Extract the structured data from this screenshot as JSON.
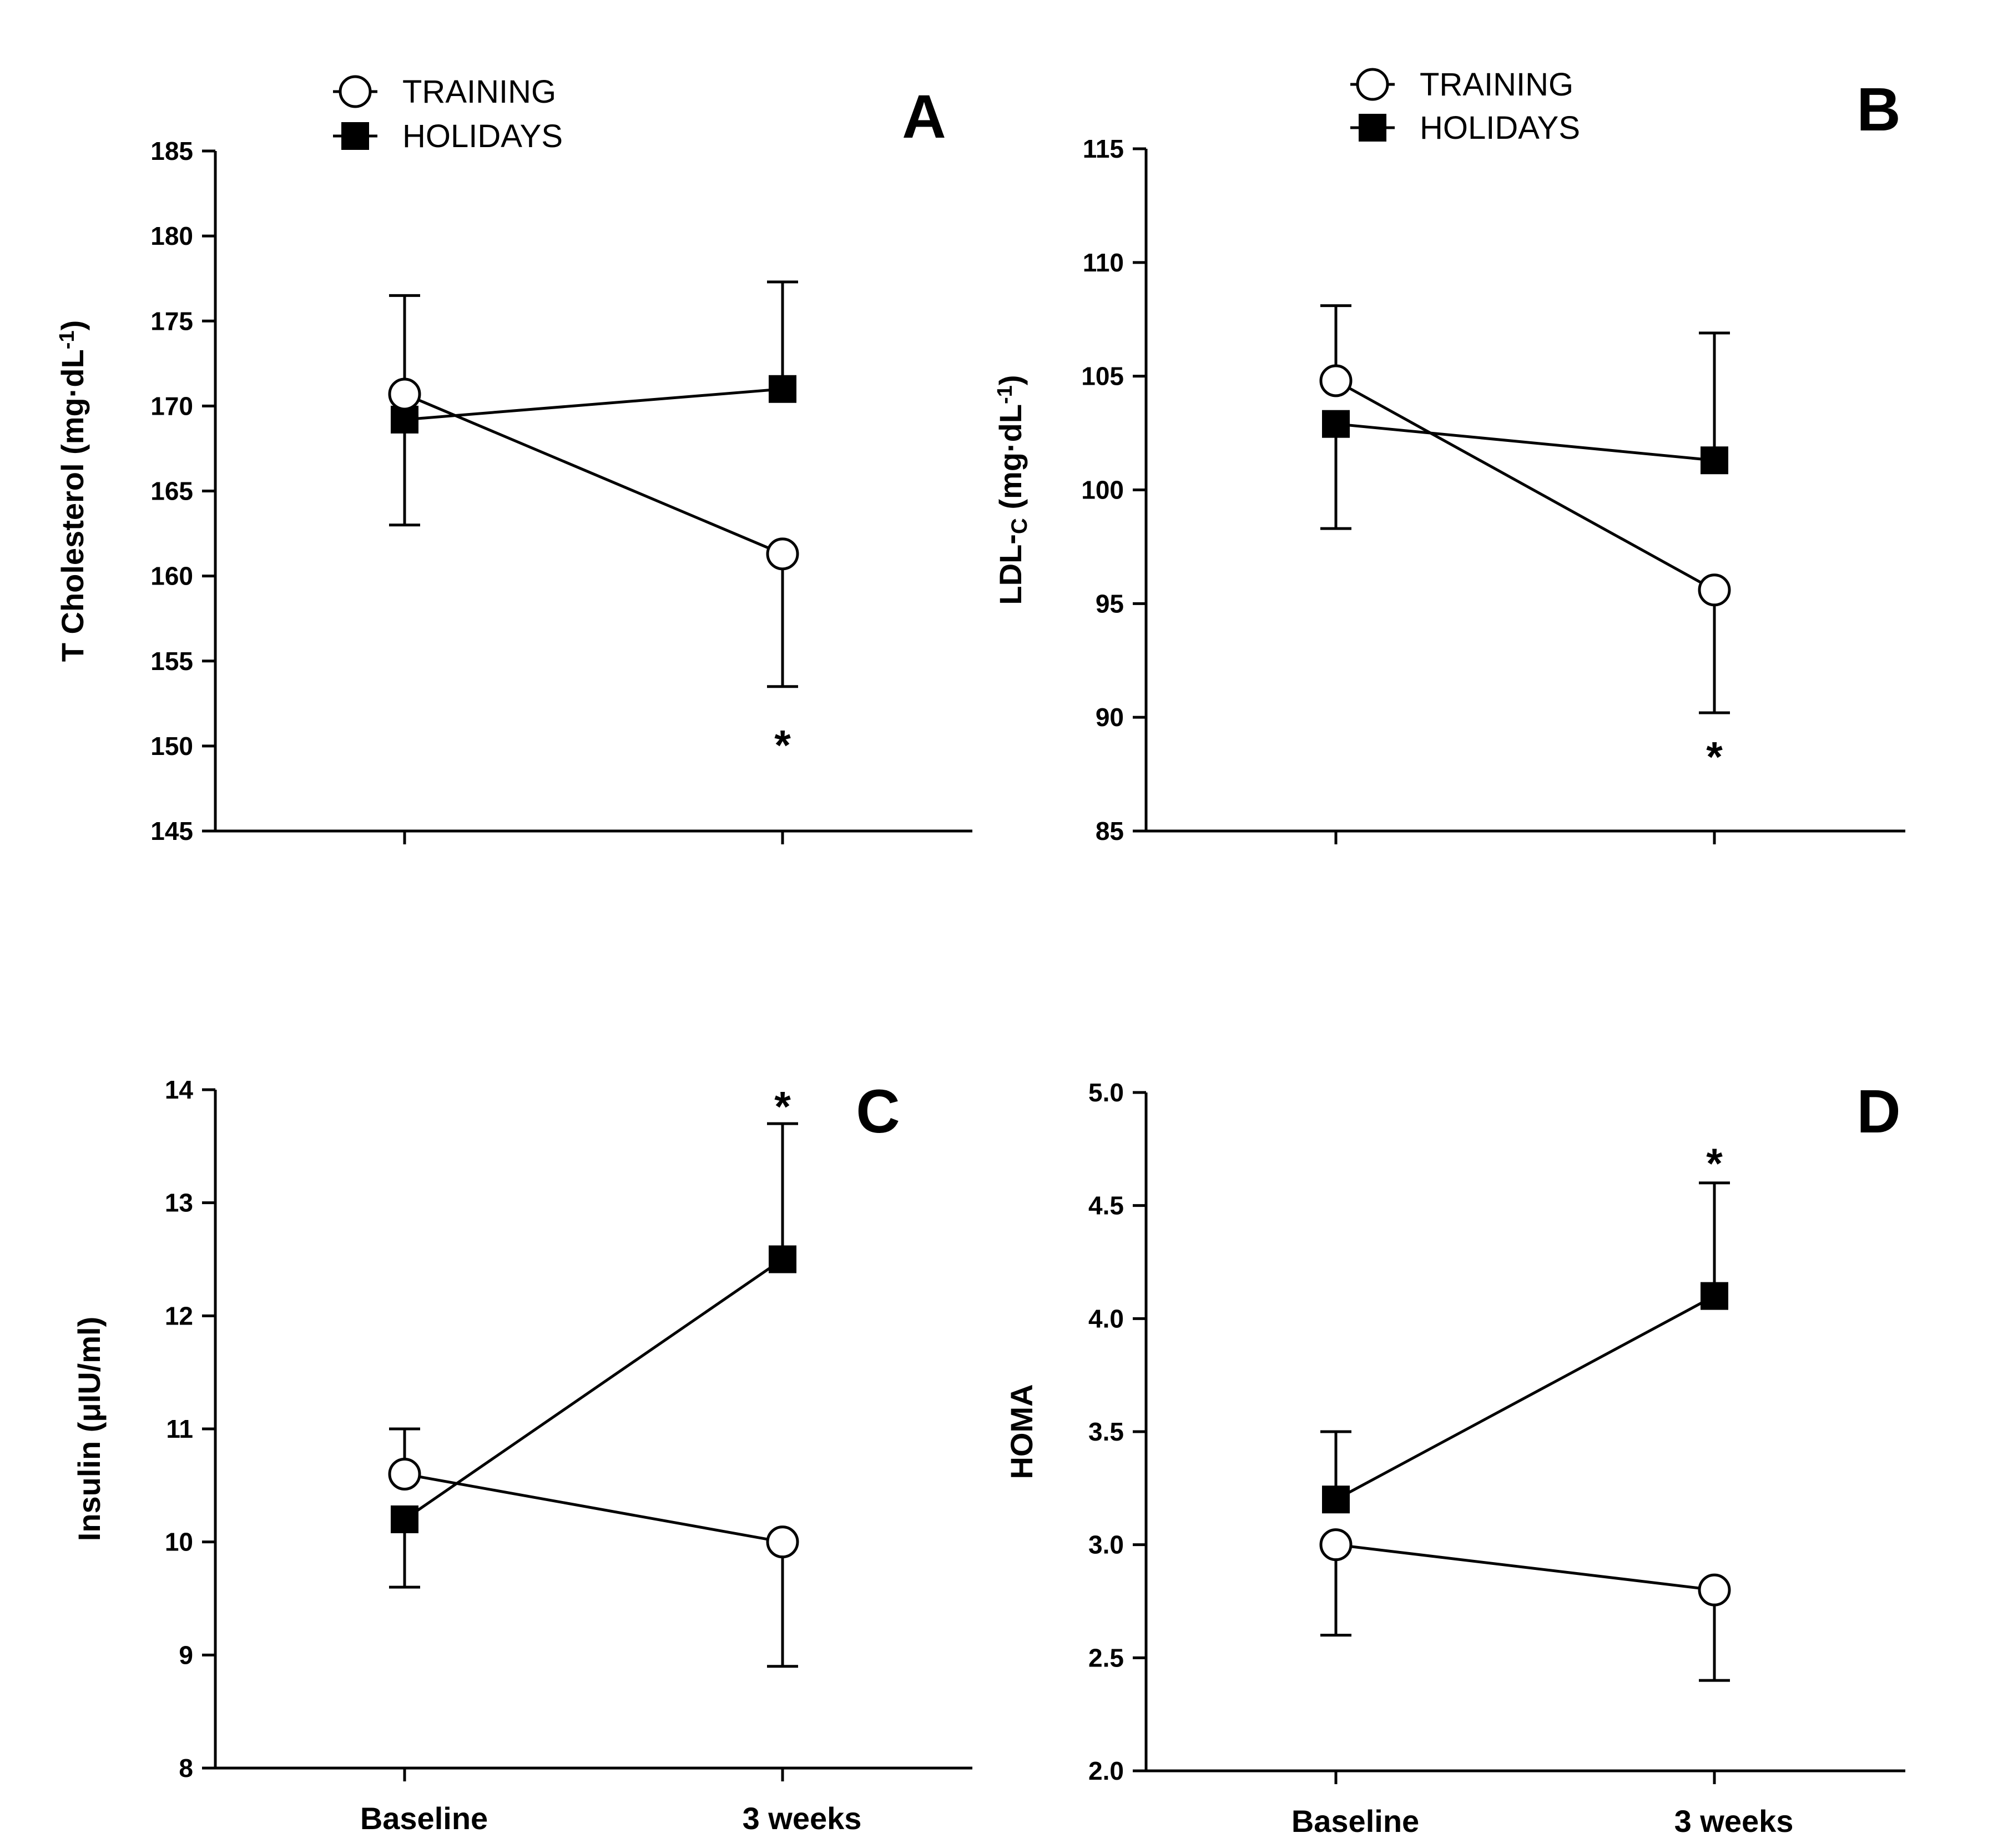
{
  "chart_data": [
    {
      "panel": "A",
      "type": "line",
      "categories": [
        "Baseline",
        "3 weeks"
      ],
      "ylabel": "T Cholesterol (mg·dL",
      "ylabel_sup": "-1",
      "ylabel_tail": ")",
      "ylim": [
        145,
        185
      ],
      "ytick_values": [
        145,
        150,
        155,
        160,
        165,
        170,
        175,
        180,
        185
      ],
      "ytick_labels": [
        "145",
        "150",
        "155",
        "160",
        "165",
        "170",
        "175",
        "180",
        "185"
      ],
      "legend": [
        "TRAINING",
        "HOLIDAYS"
      ],
      "series": [
        {
          "name": "TRAINING",
          "marker": "open-circle",
          "values": [
            170.7,
            161.3
          ],
          "err_lower": [
            null,
            153.5
          ],
          "err_upper": [
            null,
            null
          ]
        },
        {
          "name": "HOLIDAYS",
          "marker": "filled-square",
          "values": [
            169.2,
            171.0
          ],
          "err_lower": [
            163.0,
            null
          ],
          "err_upper": [
            176.5,
            177.3
          ]
        }
      ],
      "annotations": [
        {
          "text": "*",
          "category": "3 weeks",
          "y": 150.5
        }
      ]
    },
    {
      "panel": "B",
      "type": "line",
      "categories": [
        "Baseline",
        "3 weeks"
      ],
      "ylabel": "LDL-",
      "ylabel_sub": "C",
      "ylabel_mid": " (mg·dL",
      "ylabel_sup": "-1",
      "ylabel_tail": ")",
      "ylim": [
        85,
        115
      ],
      "ytick_values": [
        85,
        90,
        95,
        100,
        105,
        110,
        115
      ],
      "ytick_labels": [
        "85",
        "90",
        "95",
        "100",
        "105",
        "110",
        "115"
      ],
      "legend": [
        "TRAINING",
        "HOLIDAYS"
      ],
      "series": [
        {
          "name": "TRAINING",
          "marker": "open-circle",
          "values": [
            104.8,
            95.6
          ],
          "err_lower": [
            null,
            90.2
          ],
          "err_upper": [
            108.1,
            null
          ]
        },
        {
          "name": "HOLIDAYS",
          "marker": "filled-square",
          "values": [
            102.9,
            101.3
          ],
          "err_lower": [
            98.3,
            null
          ],
          "err_upper": [
            null,
            106.9
          ]
        }
      ],
      "annotations": [
        {
          "text": "*",
          "category": "3 weeks",
          "y": 88.6
        }
      ]
    },
    {
      "panel": "C",
      "type": "line",
      "categories": [
        "Baseline",
        "3 weeks"
      ],
      "ylabel": "Insulin (μIU/ml)",
      "ylim": [
        8,
        14
      ],
      "ytick_values": [
        8,
        9,
        10,
        11,
        12,
        13,
        14
      ],
      "ytick_labels": [
        "8",
        "9",
        "10",
        "11",
        "12",
        "13",
        "14"
      ],
      "series": [
        {
          "name": "TRAINING",
          "marker": "open-circle",
          "values": [
            10.6,
            10.0
          ],
          "err_lower": [
            null,
            8.9
          ],
          "err_upper": [
            11.0,
            null
          ]
        },
        {
          "name": "HOLIDAYS",
          "marker": "filled-square",
          "values": [
            10.2,
            12.5
          ],
          "err_lower": [
            9.6,
            null
          ],
          "err_upper": [
            null,
            13.7
          ]
        }
      ],
      "annotations": [
        {
          "text": "*",
          "category": "3 weeks",
          "y": 13.92
        }
      ]
    },
    {
      "panel": "D",
      "type": "line",
      "categories": [
        "Baseline",
        "3 weeks"
      ],
      "ylabel": "HOMA",
      "ylim": [
        2.0,
        5.0
      ],
      "ytick_values": [
        2.0,
        2.5,
        3.0,
        3.5,
        4.0,
        4.5,
        5.0
      ],
      "ytick_labels": [
        "2.0",
        "2.5",
        "3.0",
        "3.5",
        "4.0",
        "4.5",
        "5.0"
      ],
      "series": [
        {
          "name": "TRAINING",
          "marker": "open-circle",
          "values": [
            3.0,
            2.8
          ],
          "err_lower": [
            2.6,
            2.4
          ],
          "err_upper": [
            null,
            null
          ]
        },
        {
          "name": "HOLIDAYS",
          "marker": "filled-square",
          "values": [
            3.2,
            4.1
          ],
          "err_lower": [
            null,
            null
          ],
          "err_upper": [
            3.5,
            4.6
          ]
        }
      ],
      "annotations": [
        {
          "text": "*",
          "category": "3 weeks",
          "y": 4.72
        }
      ]
    }
  ]
}
